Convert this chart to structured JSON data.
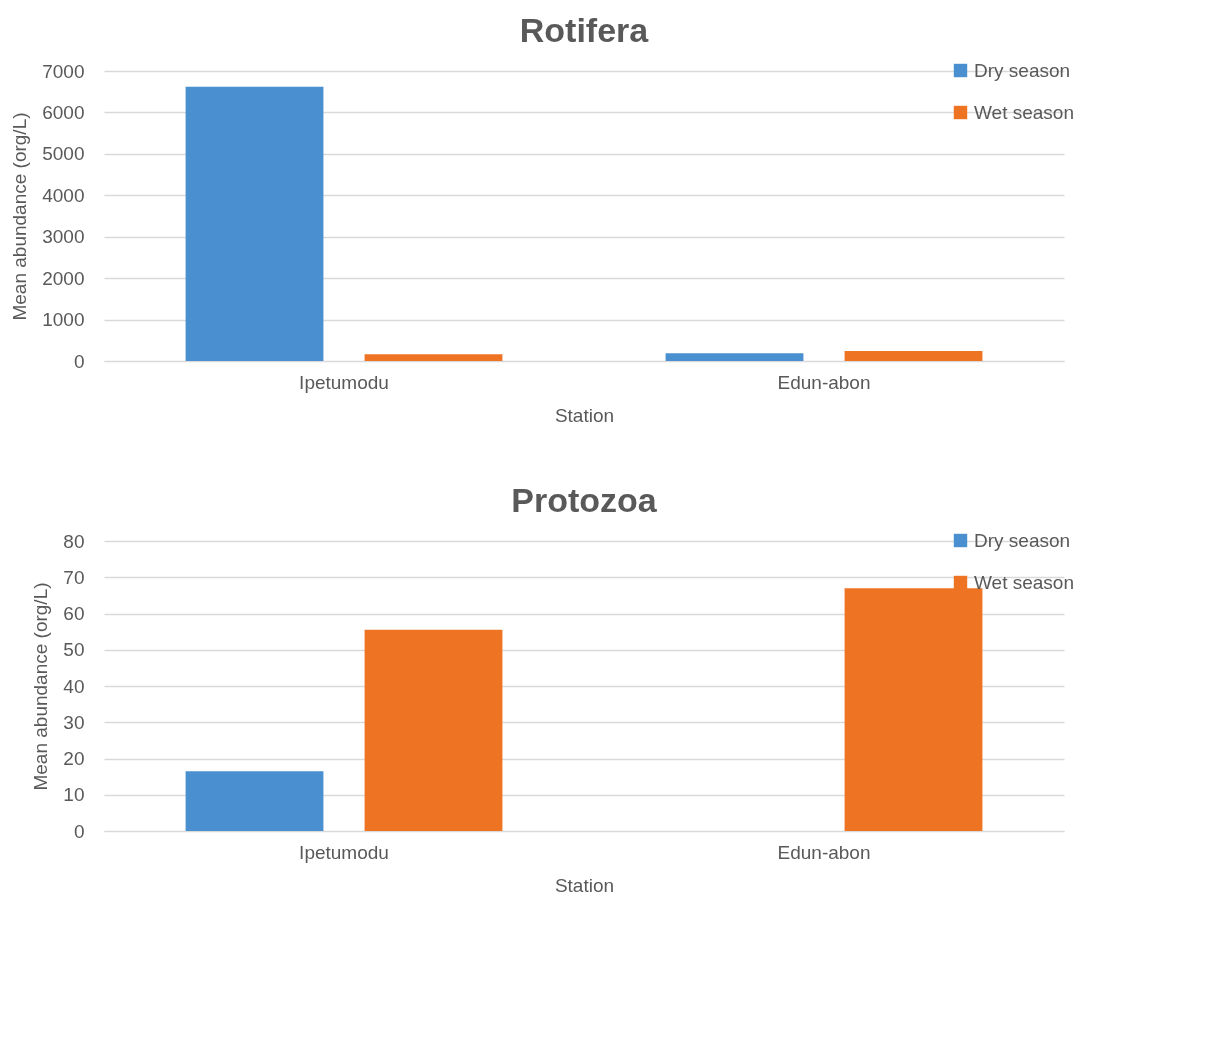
{
  "chart_data": [
    {
      "type": "bar",
      "title": "Rotifera",
      "xlabel": "Station",
      "ylabel": "Mean abundance (org/L)",
      "categories": [
        "Ipetumodu",
        "Edun-abon"
      ],
      "series": [
        {
          "name": "Dry season",
          "color": "#4a8fd0",
          "values": [
            6620,
            190
          ]
        },
        {
          "name": "Wet season",
          "color": "#ee7424",
          "values": [
            160,
            240
          ]
        }
      ],
      "ylim": [
        0,
        7000
      ],
      "yticks": [
        0,
        1000,
        2000,
        3000,
        4000,
        5000,
        6000,
        7000
      ],
      "grid": "y",
      "legend": "top right"
    },
    {
      "type": "bar",
      "title": "Protozoa",
      "xlabel": "Station",
      "ylabel": "Mean abundance (org/L)",
      "categories": [
        "Ipetumodu",
        "Edun-abon"
      ],
      "series": [
        {
          "name": "Dry season",
          "color": "#4a8fd0",
          "values": [
            16.5,
            0
          ]
        },
        {
          "name": "Wet season",
          "color": "#ee7424",
          "values": [
            55.5,
            67
          ]
        }
      ],
      "ylim": [
        0,
        80
      ],
      "yticks": [
        0,
        10,
        20,
        30,
        40,
        50,
        60,
        70,
        80
      ],
      "grid": "y",
      "legend": "top right"
    }
  ]
}
